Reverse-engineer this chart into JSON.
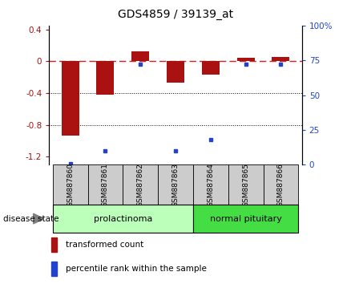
{
  "title": "GDS4859 / 39139_at",
  "samples": [
    "GSM887860",
    "GSM887861",
    "GSM887862",
    "GSM887863",
    "GSM887864",
    "GSM887865",
    "GSM887866"
  ],
  "transformed_count": [
    -0.93,
    -0.42,
    0.13,
    -0.27,
    -0.17,
    0.05,
    0.06
  ],
  "percentile_rank": [
    1.0,
    10.0,
    72.0,
    10.0,
    18.0,
    72.0,
    72.0
  ],
  "bar_color": "#aa1111",
  "dot_color": "#2244cc",
  "dashed_line_color": "#cc2222",
  "groups": [
    {
      "label": "prolactinoma",
      "start": 0,
      "end": 3,
      "color": "#bbffbb"
    },
    {
      "label": "normal pituitary",
      "start": 4,
      "end": 6,
      "color": "#44dd44"
    }
  ],
  "disease_state_label": "disease state",
  "legend_items": [
    {
      "label": "transformed count",
      "color": "#aa1111"
    },
    {
      "label": "percentile rank within the sample",
      "color": "#2244cc"
    }
  ],
  "ylim_left": [
    -1.3,
    0.45
  ],
  "ylim_right": [
    0,
    100
  ],
  "yticks_left": [
    -1.2,
    -0.8,
    -0.4,
    0.0,
    0.4
  ],
  "yticks_right": [
    0,
    25,
    50,
    75,
    100
  ],
  "right_tick_labels": [
    "0",
    "25",
    "50",
    "75",
    "100%"
  ],
  "grid_lines_dotted": [
    -0.4,
    -0.8
  ],
  "bar_width": 0.5,
  "background_color": "#ffffff"
}
